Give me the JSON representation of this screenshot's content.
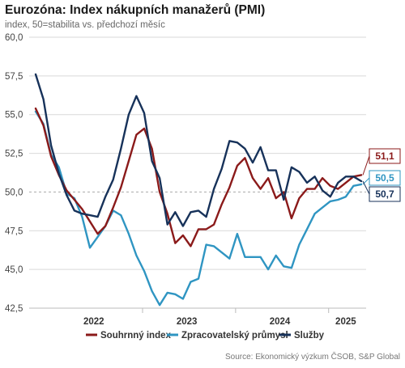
{
  "header": {
    "title": "Eurozóna: Index nákupních manažerů (PMI)",
    "subtitle": "index, 50=stabilita vs. předchozí měsíc"
  },
  "footer": {
    "source": "Source: Ekonomický výzkum ČSOB, S&P Global"
  },
  "colors": {
    "composite": "#8b1a1a",
    "manufacturing": "#2f95c2",
    "services": "#17325a",
    "grid": "#d9d9d9",
    "reference": "#aaaaaa"
  },
  "chart_data": {
    "type": "line",
    "title": "Eurozóna: Index nákupních manažerů (PMI)",
    "subtitle": "index, 50=stabilita vs. předchozí měsíc",
    "x_start": "2021-11",
    "x_end": "2025-06",
    "x_tick_labels": [
      "2022",
      "2023",
      "2024",
      "2025"
    ],
    "y_tick_labels": [
      "42,5",
      "45,0",
      "47,5",
      "50,0",
      "52,5",
      "55,0",
      "57,5",
      "60,0"
    ],
    "ylim": [
      42.5,
      60.0
    ],
    "reference_line": 50.0,
    "grid": "horizontal",
    "legend_position": "bottom",
    "series": [
      {
        "name": "Souhrnný index",
        "values": [
          55.4,
          54.3,
          52.3,
          51.1,
          50.1,
          49.5,
          48.9,
          48.1,
          47.3,
          47.8,
          49.0,
          50.3,
          52.0,
          53.7,
          54.1,
          52.8,
          50.0,
          48.6,
          46.7,
          47.2,
          46.5,
          47.6,
          47.6,
          47.9,
          49.2,
          50.3,
          51.7,
          52.2,
          50.9,
          50.2,
          50.9,
          49.6,
          50.0,
          48.3,
          49.6,
          50.2,
          50.2,
          50.9,
          50.4,
          50.2,
          50.6,
          51.0,
          51.1
        ],
        "callout": "51,1"
      },
      {
        "name": "Zpracovatelský průmysl",
        "values": [
          55.2,
          54.4,
          52.4,
          51.6,
          49.9,
          49.6,
          48.4,
          46.4,
          47.1,
          47.8,
          48.8,
          48.5,
          47.3,
          45.9,
          44.9,
          43.6,
          42.7,
          43.5,
          43.4,
          43.1,
          44.2,
          44.4,
          46.6,
          46.5,
          46.1,
          45.7,
          47.3,
          45.8,
          45.8,
          45.8,
          45.0,
          45.9,
          45.2,
          45.1,
          46.6,
          47.6,
          48.6,
          49.0,
          49.4,
          49.5,
          49.7,
          50.4,
          50.5
        ],
        "callout": "50,5"
      },
      {
        "name": "Služby",
        "values": [
          57.6,
          56.0,
          53.0,
          51.2,
          49.8,
          48.8,
          48.6,
          48.5,
          48.4,
          49.7,
          50.8,
          52.8,
          55.0,
          56.2,
          55.1,
          52.0,
          50.9,
          47.9,
          48.7,
          47.8,
          48.7,
          48.8,
          48.4,
          50.2,
          51.5,
          53.3,
          53.2,
          52.8,
          51.9,
          52.9,
          51.4,
          51.4,
          49.5,
          51.6,
          51.3,
          50.6,
          51.0,
          50.1,
          49.7,
          50.6,
          51.0,
          51.0,
          50.7
        ],
        "callout": "50,7"
      }
    ]
  }
}
